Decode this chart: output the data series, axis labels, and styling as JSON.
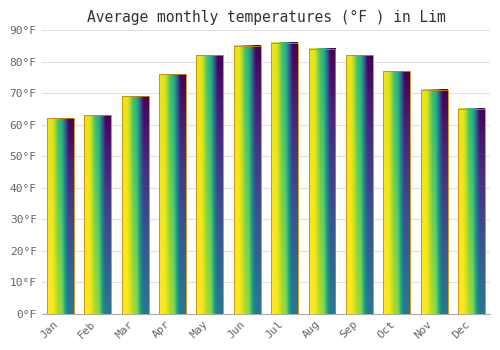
{
  "title": "Average monthly temperatures (°F ) in Lim",
  "months": [
    "Jan",
    "Feb",
    "Mar",
    "Apr",
    "May",
    "Jun",
    "Jul",
    "Aug",
    "Sep",
    "Oct",
    "Nov",
    "Dec"
  ],
  "values": [
    62,
    63,
    69,
    76,
    82,
    85,
    86,
    84,
    82,
    77,
    71,
    65
  ],
  "bar_color_top": "#F5A800",
  "bar_color_bottom": "#FFD966",
  "bar_edge_color": "#CC8800",
  "background_color": "#ffffff",
  "ylim": [
    0,
    90
  ],
  "yticks": [
    0,
    10,
    20,
    30,
    40,
    50,
    60,
    70,
    80,
    90
  ],
  "ytick_labels": [
    "0°F",
    "10°F",
    "20°F",
    "30°F",
    "40°F",
    "50°F",
    "60°F",
    "70°F",
    "80°F",
    "90°F"
  ],
  "title_fontsize": 10.5,
  "tick_fontsize": 8,
  "grid_color": "#e0e0e0",
  "bar_width": 0.72
}
